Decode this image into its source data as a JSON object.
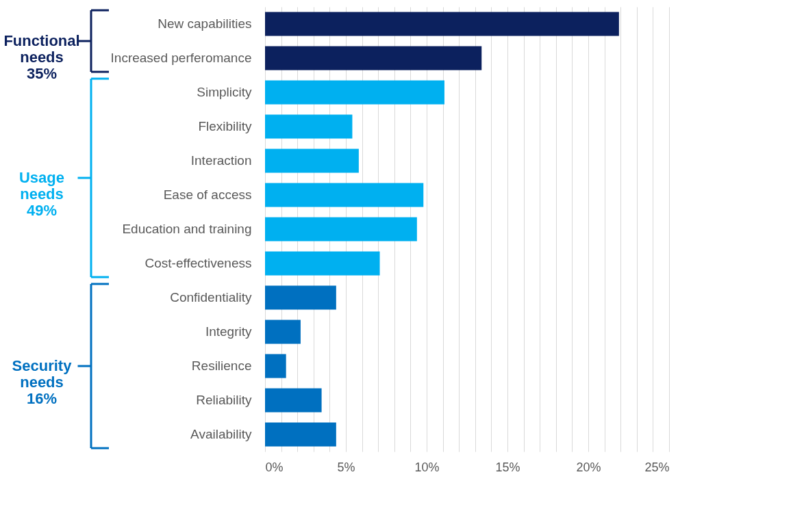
{
  "chart_data": {
    "type": "bar",
    "orientation": "horizontal",
    "categories": [
      "New capabilities",
      "Increased perferomance",
      "Simplicity",
      "Flexibility",
      "Interaction",
      "Ease of access",
      "Education and training",
      "Cost-effectiveness",
      "Confidentiality",
      "Integrity",
      "Resilience",
      "Reliability",
      "Availability"
    ],
    "series": [
      {
        "name": "Functional\nneeds\n35%",
        "color": "#0c215e",
        "values": [
          21.9,
          13.4,
          null,
          null,
          null,
          null,
          null,
          null,
          null,
          null,
          null,
          null,
          null
        ]
      },
      {
        "name": "Usage\nneeds\n49%",
        "color": "#00b0f0",
        "values": [
          null,
          null,
          11.1,
          5.4,
          5.8,
          9.8,
          9.4,
          7.1,
          null,
          null,
          null,
          null,
          null
        ]
      },
      {
        "name": "Security\nneeds\n16%",
        "color": "#0070c0",
        "values": [
          null,
          null,
          null,
          null,
          null,
          null,
          null,
          null,
          4.4,
          2.2,
          1.3,
          3.5,
          4.4
        ]
      }
    ],
    "xlim": [
      0,
      25
    ],
    "xticks": [
      {
        "value": 0,
        "label": "0%"
      },
      {
        "value": 1,
        "label": null
      },
      {
        "value": 2,
        "label": null
      },
      {
        "value": 3,
        "label": null
      },
      {
        "value": 4,
        "label": null
      },
      {
        "value": 5,
        "label": "5%"
      },
      {
        "value": 6,
        "label": null
      },
      {
        "value": 7,
        "label": null
      },
      {
        "value": 8,
        "label": null
      },
      {
        "value": 9,
        "label": null
      },
      {
        "value": 10,
        "label": "10%"
      },
      {
        "value": 11,
        "label": null
      },
      {
        "value": 12,
        "label": null
      },
      {
        "value": 13,
        "label": null
      },
      {
        "value": 14,
        "label": null
      },
      {
        "value": 15,
        "label": "15%"
      },
      {
        "value": 16,
        "label": null
      },
      {
        "value": 17,
        "label": null
      },
      {
        "value": 18,
        "label": null
      },
      {
        "value": 19,
        "label": null
      },
      {
        "value": 20,
        "label": "20%"
      },
      {
        "value": 21,
        "label": null
      },
      {
        "value": 22,
        "label": null
      },
      {
        "value": 23,
        "label": null
      },
      {
        "value": 24,
        "label": null
      },
      {
        "value": 25,
        "label": "25%"
      }
    ],
    "grid": "x",
    "legend": "left"
  }
}
